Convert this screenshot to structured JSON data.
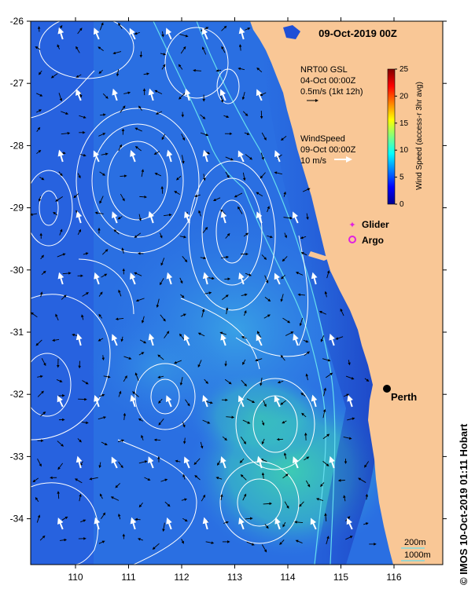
{
  "title": "09-Oct-2019 00Z",
  "colors": {
    "land": "#f9c796",
    "ocean_deep": "#1f4fd6",
    "ocean_mid": "#2f7ee6",
    "ocean_light": "#39b7d2",
    "ocean_green": "#3dcfb2",
    "contour": "#ffffff",
    "shelf_line": "#66ddee",
    "glider": "#e020e0",
    "argo": "#e020e0"
  },
  "axes": {
    "x_ticks": [
      "110",
      "111",
      "112",
      "113",
      "114",
      "115",
      "116"
    ],
    "y_ticks": [
      "-26",
      "-27",
      "-28",
      "-29",
      "-30",
      "-31",
      "-32",
      "-33",
      "-34"
    ]
  },
  "current_legend": {
    "line1": "NRT00 GSL",
    "line2": "04-Oct 00:00Z",
    "line3": "0.5m/s (1kt 12h)"
  },
  "wind_legend": {
    "line1": "WindSpeed",
    "line2": "09-Oct 00:00Z",
    "line3": "10 m/s"
  },
  "colorbar": {
    "label": "Wind Speed (access-r 3hr avg)",
    "ticks": [
      "0",
      "5",
      "10",
      "15",
      "20",
      "25"
    ],
    "min": 0,
    "max": 25,
    "icon": "colorbar-jet"
  },
  "markers": {
    "glider_label": "Glider",
    "argo_label": "Argo",
    "city_label": "Perth"
  },
  "isobaths": {
    "label1": "200m",
    "label2": "1000m"
  },
  "credit": "© IMOS 10-Oct-2019 01:11 Hobart"
}
